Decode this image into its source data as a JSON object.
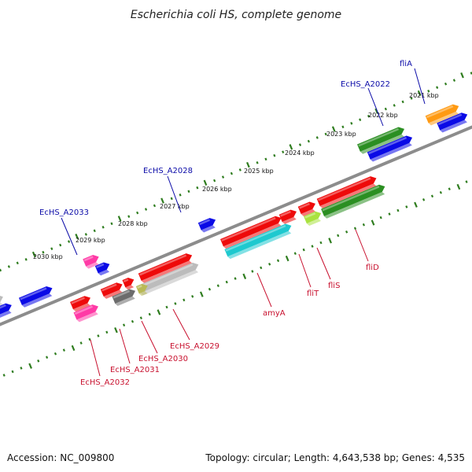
{
  "title": "Escherichia coli HS, complete genome",
  "footer": {
    "accession": "Accession: NC_009800",
    "topology": "Topology: circular; Length: 4,643,538 bp; Genes: 4,535"
  },
  "colors": {
    "backbone": "#8c8c8c",
    "tick": "#2f7d1f",
    "forward_label": "#0b0ba8",
    "reverse_label": "#c8102e",
    "red": "#ee0a0a",
    "blue": "#0a0ae6",
    "green": "#2b8f22",
    "cyan": "#1ec9cf",
    "magenta": "#ff3aa6",
    "orange": "#ff9a12",
    "gray": "#bcbcbc",
    "darkgray": "#6c6c6c",
    "olive": "#b9ba56",
    "yellowgreen": "#a9e23f"
  },
  "kbp_labels": [
    "2021 kbp",
    "2022 kbp",
    "2023 kbp",
    "2024 kbp",
    "2025 kbp",
    "2026 kbp",
    "2027 kbp",
    "2028 kbp",
    "2029 kbp",
    "2030 kbp"
  ],
  "gene_labels": [
    {
      "text": "fliA",
      "strand": "forward"
    },
    {
      "text": "EcHS_A2022",
      "strand": "forward"
    },
    {
      "text": "EcHS_A2028",
      "strand": "forward"
    },
    {
      "text": "EcHS_A2033",
      "strand": "forward"
    },
    {
      "text": "fliD",
      "strand": "reverse"
    },
    {
      "text": "fliS",
      "strand": "reverse"
    },
    {
      "text": "fliT",
      "strand": "reverse"
    },
    {
      "text": "amyA",
      "strand": "reverse"
    },
    {
      "text": "EcHS_A2029",
      "strand": "reverse"
    },
    {
      "text": "EcHS_A2030",
      "strand": "reverse"
    },
    {
      "text": "EcHS_A2031",
      "strand": "reverse"
    },
    {
      "text": "EcHS_A2032",
      "strand": "reverse"
    }
  ],
  "features": [
    {
      "name": "fliA",
      "color": "orange",
      "strand": "forward",
      "row": 2
    },
    {
      "name": "EcHS_A2022",
      "color": "green",
      "strand": "forward",
      "row": 2
    },
    {
      "name": "blue-gene-1",
      "color": "blue",
      "strand": "forward",
      "row": 1
    },
    {
      "name": "blue-gene-2",
      "color": "blue",
      "strand": "forward",
      "row": 1
    },
    {
      "name": "EcHS_A2028",
      "color": "blue",
      "strand": "forward",
      "row": 1
    },
    {
      "name": "blue-gene-3",
      "color": "blue",
      "strand": "forward",
      "row": 1
    },
    {
      "name": "EcHS_A2033",
      "color": "magenta",
      "strand": "forward",
      "row": 2
    },
    {
      "name": "blue-gene-4",
      "color": "blue",
      "strand": "forward",
      "row": 1
    },
    {
      "name": "blue-gene-5",
      "color": "blue",
      "strand": "forward",
      "row": 1
    },
    {
      "name": "gray-gene-1",
      "color": "gray",
      "strand": "forward",
      "row": 2
    },
    {
      "name": "fliD",
      "color": "green",
      "strand": "reverse",
      "row": 2
    },
    {
      "name": "fliD-red",
      "color": "red",
      "strand": "reverse",
      "row": 1
    },
    {
      "name": "fliS",
      "color": "yellowgreen",
      "strand": "reverse",
      "row": 2
    },
    {
      "name": "fliT-1",
      "color": "red",
      "strand": "reverse",
      "row": 1
    },
    {
      "name": "fliT-2",
      "color": "red",
      "strand": "reverse",
      "row": 1
    },
    {
      "name": "amyA",
      "color": "cyan",
      "strand": "reverse",
      "row": 2
    },
    {
      "name": "amyA-red",
      "color": "red",
      "strand": "reverse",
      "row": 1
    },
    {
      "name": "EcHS_A2029",
      "color": "gray",
      "strand": "reverse",
      "row": 2
    },
    {
      "name": "EcHS_A2029-red",
      "color": "red",
      "strand": "reverse",
      "row": 1
    },
    {
      "name": "EcHS_A2030",
      "color": "olive",
      "strand": "reverse",
      "row": 2
    },
    {
      "name": "EcHS_A2030-red",
      "color": "red",
      "strand": "reverse",
      "row": 1
    },
    {
      "name": "EcHS_A2031",
      "color": "darkgray",
      "strand": "reverse",
      "row": 2
    },
    {
      "name": "EcHS_A2031-red",
      "color": "red",
      "strand": "reverse",
      "row": 1
    },
    {
      "name": "EcHS_A2032",
      "color": "magenta",
      "strand": "reverse",
      "row": 2
    },
    {
      "name": "EcHS_A2032-red",
      "color": "red",
      "strand": "reverse",
      "row": 1
    }
  ]
}
